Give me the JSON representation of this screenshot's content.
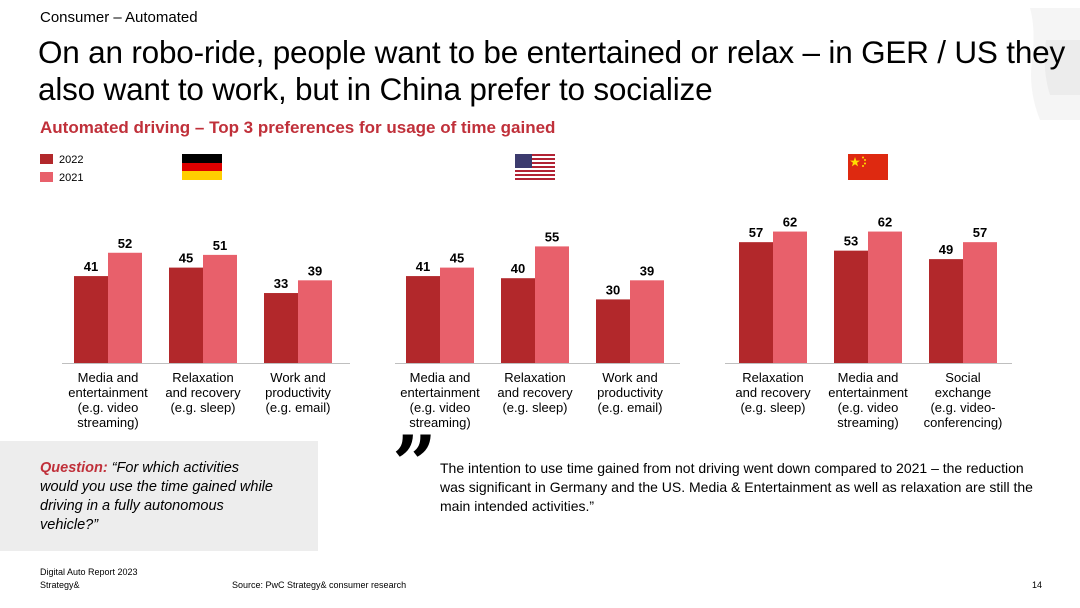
{
  "header": {
    "section": "Consumer – Automated",
    "title": "On an robo-ride, people want to be entertained or relax – in GER / US they also want to work, but in China prefer to socialize",
    "subtitle": "Automated driving – Top 3 preferences for usage of time gained"
  },
  "legend": [
    {
      "label": "2022",
      "color": "#b2282b"
    },
    {
      "label": "2021",
      "color": "#e8606b"
    }
  ],
  "chart_data": [
    {
      "type": "bar",
      "region_icon": "germany-flag-icon",
      "categories": [
        "Media and entertainment (e.g. video streaming)",
        "Relaxation and recovery (e.g. sleep)",
        "Work and productivity (e.g. email)"
      ],
      "category_lines": [
        [
          "Media and",
          "entertainment",
          "(e.g. video",
          "streaming)"
        ],
        [
          "Relaxation",
          "and recovery",
          "(e.g. sleep)"
        ],
        [
          "Work and",
          "productivity",
          "(e.g. email)"
        ]
      ],
      "series": [
        {
          "name": "2022",
          "values": [
            41,
            45,
            33
          ]
        },
        {
          "name": "2021",
          "values": [
            52,
            51,
            39
          ]
        }
      ]
    },
    {
      "type": "bar",
      "region_icon": "usa-flag-icon",
      "categories": [
        "Media and entertainment (e.g. video streaming)",
        "Relaxation and recovery (e.g. sleep)",
        "Work and productivity (e.g. email)"
      ],
      "category_lines": [
        [
          "Media and",
          "entertainment",
          "(e.g. video",
          "streaming)"
        ],
        [
          "Relaxation",
          "and recovery",
          "(e.g. sleep)"
        ],
        [
          "Work and",
          "productivity",
          "(e.g. email)"
        ]
      ],
      "series": [
        {
          "name": "2022",
          "values": [
            41,
            40,
            30
          ]
        },
        {
          "name": "2021",
          "values": [
            45,
            55,
            39
          ]
        }
      ]
    },
    {
      "type": "bar",
      "region_icon": "china-flag-icon",
      "categories": [
        "Relaxation and recovery (e.g. sleep)",
        "Media and entertainment (e.g. video streaming)",
        "Social exchange (e.g. video-conferencing)"
      ],
      "category_lines": [
        [
          "Relaxation",
          "and recovery",
          "(e.g. sleep)"
        ],
        [
          "Media and",
          "entertainment",
          "(e.g. video",
          "streaming)"
        ],
        [
          "Social",
          "exchange",
          "(e.g. video-",
          "conferencing)"
        ]
      ],
      "series": [
        {
          "name": "2022",
          "values": [
            57,
            53,
            49
          ]
        },
        {
          "name": "2021",
          "values": [
            62,
            62,
            57
          ]
        }
      ]
    }
  ],
  "question": {
    "lead": "Question:",
    "text": " “For which activities would you use the time gained while driving in a fully autonomous vehicle?”"
  },
  "quote": {
    "mark": "”",
    "text": "The intention to use time gained from not driving went down compared to 2021 – the reduction was significant in Germany and the US. Media & Entertainment as well as relaxation are still the main intended activities.”"
  },
  "footer": {
    "report": "Digital Auto Report 2023",
    "brand": "Strategy&",
    "source": "Source: PwC Strategy& consumer research",
    "page": "14"
  }
}
